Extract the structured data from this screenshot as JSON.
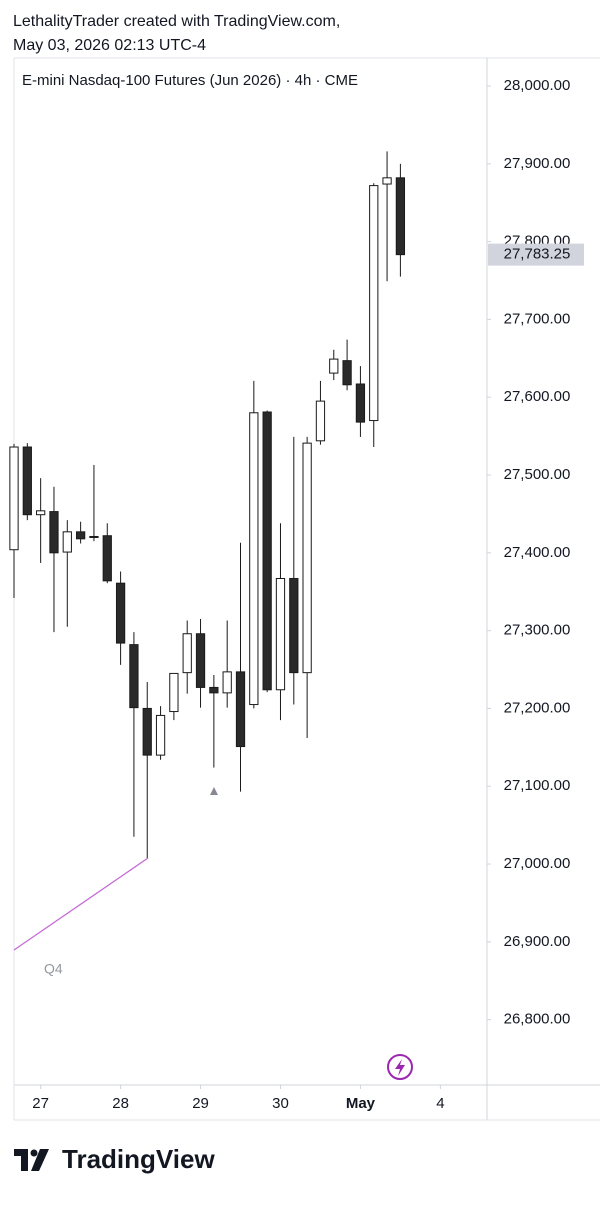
{
  "header": {
    "line1": "LethalityTrader created with TradingView.com,",
    "line2": "May 03, 2026 02:13 UTC-4"
  },
  "chart_data": {
    "type": "candlestick",
    "title": "E-mini Nasdaq-100 Futures (Jun 2026) · 4h · CME",
    "open": [
      27404,
      27536,
      27449,
      27453,
      27401,
      27427,
      27421,
      27422,
      27361,
      27282,
      27200,
      27140,
      27196,
      27246,
      27296,
      27227,
      27220,
      27247,
      27205,
      27581,
      27224,
      27367,
      27246,
      27544,
      27631,
      27647,
      27617,
      27570,
      27874,
      27882
    ],
    "high": [
      27540,
      27541,
      27496,
      27485,
      27442,
      27440,
      27513,
      27438,
      27376,
      27298,
      27234,
      27203,
      27245,
      27313,
      27315,
      27243,
      27313,
      27413,
      27621,
      27583,
      27438,
      27549,
      27549,
      27621,
      27661,
      27674,
      27640,
      27875,
      27916,
      27900
    ],
    "low": [
      27342,
      27442,
      27387,
      27298,
      27305,
      27412,
      27415,
      27361,
      27256,
      27035,
      27008,
      27134,
      27185,
      27219,
      27201,
      27124,
      27201,
      27093,
      27200,
      27221,
      27185,
      27205,
      27162,
      27539,
      27622,
      27609,
      27549,
      27536,
      27749,
      27755
    ],
    "close": [
      27536,
      27449,
      27454,
      27400,
      27427,
      27418,
      27420,
      27364,
      27284,
      27201,
      27140,
      27191,
      27245,
      27296,
      27227,
      27220,
      27247,
      27151,
      27580,
      27224,
      27367,
      27246,
      27541,
      27595,
      27649,
      27616,
      27568,
      27872,
      27882,
      27783.25
    ],
    "up_color": "#ffffff",
    "down_color": "#2a2a2a",
    "border_color": "#1a1a1a",
    "ylim": [
      26716,
      28036
    ],
    "yticks": [
      {
        "value": 26800,
        "label": "26,800.00"
      },
      {
        "value": 26900,
        "label": "26,900.00"
      },
      {
        "value": 27000,
        "label": "27,000.00"
      },
      {
        "value": 27100,
        "label": "27,100.00"
      },
      {
        "value": 27200,
        "label": "27,200.00"
      },
      {
        "value": 27300,
        "label": "27,300.00"
      },
      {
        "value": 27400,
        "label": "27,400.00"
      },
      {
        "value": 27500,
        "label": "27,500.00"
      },
      {
        "value": 27600,
        "label": "27,600.00"
      },
      {
        "value": 27700,
        "label": "27,700.00"
      },
      {
        "value": 27800,
        "label": "27,800.00"
      },
      {
        "value": 27900,
        "label": "27,900.00"
      },
      {
        "value": 28000,
        "label": "28,000.00"
      }
    ],
    "xlim": [
      0,
      35.5
    ],
    "xticks": [
      {
        "value": 2,
        "label": "27"
      },
      {
        "value": 8,
        "label": "28"
      },
      {
        "value": 14,
        "label": "29"
      },
      {
        "value": 20,
        "label": "30"
      },
      {
        "value": 26,
        "label": "May"
      },
      {
        "value": 32,
        "label": "4"
      }
    ],
    "last_price": {
      "value": 27783.25,
      "label": "27,783.25"
    },
    "annotation": "Q4"
  },
  "footer": {
    "logo": "TradingView"
  }
}
